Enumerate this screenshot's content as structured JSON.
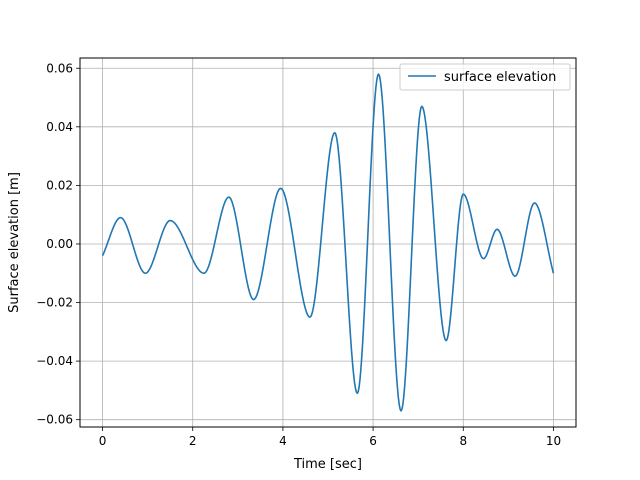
{
  "chart_data": {
    "type": "line",
    "title": "",
    "xlabel": "Time [sec]",
    "ylabel": "Surface elevation [m]",
    "xlim": [
      -0.5,
      10.5
    ],
    "ylim": [
      -0.0625,
      0.0635
    ],
    "xticks": [
      0,
      2,
      4,
      6,
      8,
      10
    ],
    "xtick_labels": [
      "0",
      "2",
      "4",
      "6",
      "8",
      "10"
    ],
    "yticks": [
      -0.06,
      -0.04,
      -0.02,
      0.0,
      0.02,
      0.04,
      0.06
    ],
    "ytick_labels": [
      "−0.06",
      "−0.04",
      "−0.02",
      "0.00",
      "0.02",
      "0.04",
      "0.06"
    ],
    "grid": true,
    "legend_position": "top-right",
    "series": [
      {
        "name": "surface elevation",
        "color": "#1f77b4",
        "x": [
          0,
          0.4,
          0.95,
          1.5,
          2.25,
          2.8,
          3.35,
          3.95,
          4.6,
          5.15,
          5.65,
          6.12,
          6.62,
          7.08,
          7.62,
          8.0,
          8.45,
          8.75,
          9.15,
          9.58,
          10.0
        ],
        "y": [
          -0.004,
          0.009,
          -0.01,
          0.008,
          -0.01,
          0.016,
          -0.019,
          0.019,
          -0.025,
          0.038,
          -0.051,
          0.058,
          -0.057,
          0.047,
          -0.033,
          0.017,
          -0.005,
          0.005,
          -0.011,
          0.014,
          -0.01
        ]
      }
    ]
  }
}
